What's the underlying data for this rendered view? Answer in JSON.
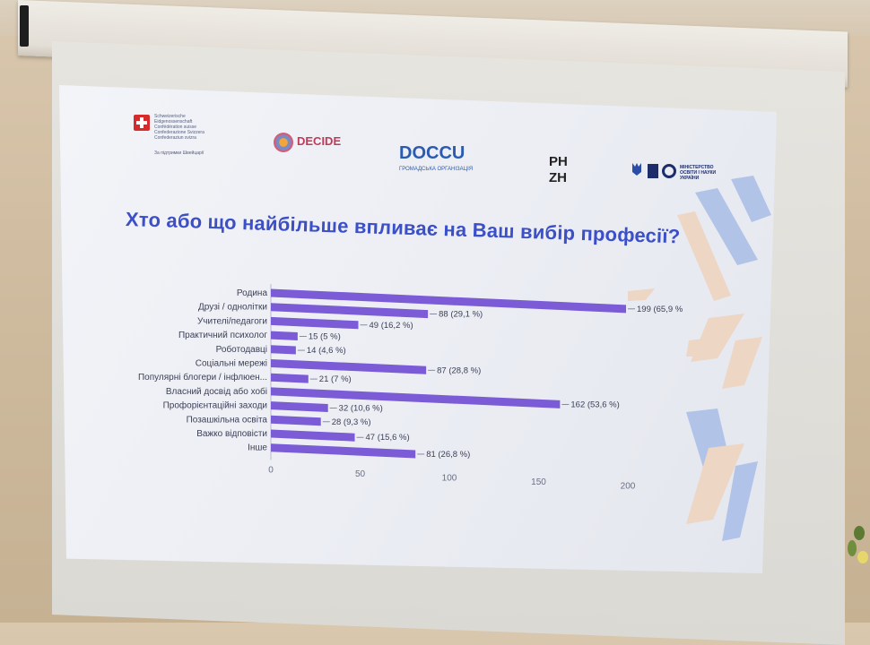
{
  "slide": {
    "title": "Хто або що найбільше впливає на Ваш вибір професії?",
    "logos": {
      "swiss_lines": [
        "Schweizerische Eidgenossenschaft",
        "Confédération suisse",
        "Confederazione Svizzera",
        "Confederaziun svizra"
      ],
      "swiss_sub": "За підтримки Швейцарії",
      "decide": "DECIDE",
      "doccu": "DOCCU",
      "doccu_sub": "ГРОМАДСЬКА ОРГАНІЗАЦІЯ",
      "phzh_top": "PH",
      "phzh_bottom": "ZH",
      "ministry": "МІНІСТЕРСТВО ОСВІТИ І НАУКИ УКРАЇНИ"
    }
  },
  "colors": {
    "bar": "#7b5bd6",
    "title": "#3b4fc9",
    "deco_blue": "#a9bde7",
    "deco_peach": "#efd3bd"
  },
  "chart_data": {
    "type": "bar",
    "orientation": "horizontal",
    "categories": [
      "Родина",
      "Друзі / однолітки",
      "Учителі/педагоги",
      "Практичний психолог",
      "Роботодавці",
      "Соціальні мережі",
      "Популярні блогери / інфлюен...",
      "Власний досвід або хобі",
      "Профорієнтаційні заходи",
      "Позашкільна освіта",
      "Важко відповісти",
      "Інше"
    ],
    "values": [
      199,
      88,
      49,
      15,
      14,
      87,
      21,
      162,
      32,
      28,
      47,
      81
    ],
    "data_labels": [
      "199 (65,9 %",
      "88 (29,1 %)",
      "49 (16,2 %)",
      "15 (5 %)",
      "14 (4,6 %)",
      "87 (28,8 %)",
      "21 (7 %)",
      "162 (53,6 %)",
      "32 (10,6 %)",
      "28 (9,3 %)",
      "47 (15,6 %)",
      "81 (26,8 %)"
    ],
    "xticks": [
      0,
      50,
      100,
      150,
      200
    ],
    "xlim": [
      0,
      200
    ],
    "title": "",
    "xlabel": "",
    "ylabel": ""
  }
}
